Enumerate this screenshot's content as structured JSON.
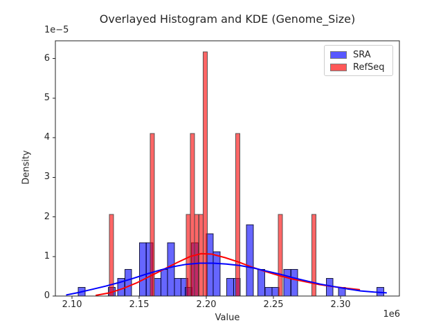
{
  "title": "Overlayed Histogram and KDE (Genome_Size)",
  "axes": {
    "xlabel": "Value",
    "ylabel": "Density",
    "y_offset_label": "1e−5",
    "x_offset_label": "1e6"
  },
  "legend": {
    "items": [
      {
        "label": "SRA",
        "color": "#0000ff"
      },
      {
        "label": "RefSeq",
        "color": "#ff0000"
      }
    ]
  },
  "chart_data": {
    "type": "histogram+kde",
    "title": "Overlayed Histogram and KDE (Genome_Size)",
    "xlabel": "Value",
    "ylabel": "Density",
    "x_unit_multiplier": "1e6",
    "y_unit_multiplier": "1e-5",
    "xlim": [
      2.0876,
      2.3438
    ],
    "ylim": [
      0,
      6.45
    ],
    "grid": false,
    "legend_position": "upper right",
    "x_ticks": [
      {
        "value": 2.1,
        "label": "2.10"
      },
      {
        "value": 2.15,
        "label": "2.15"
      },
      {
        "value": 2.2,
        "label": "2.20"
      },
      {
        "value": 2.25,
        "label": "2.25"
      },
      {
        "value": 2.3,
        "label": "2.30"
      }
    ],
    "y_ticks": [
      {
        "value": 0,
        "label": "0"
      },
      {
        "value": 1,
        "label": "1"
      },
      {
        "value": 2,
        "label": "2"
      },
      {
        "value": 3,
        "label": "3"
      },
      {
        "value": 4,
        "label": "4"
      },
      {
        "value": 5,
        "label": "5"
      },
      {
        "value": 6,
        "label": "6"
      }
    ],
    "series": [
      {
        "name": "SRA",
        "color": "#0000ff",
        "fill_opacity": 0.6,
        "edge_color": "rgba(0,0,25,0.85)",
        "bar_width": 0.005,
        "bars": [
          [
            2.1072,
            0.22
          ],
          [
            2.1296,
            0.22
          ],
          [
            2.1366,
            0.45
          ],
          [
            2.1418,
            0.67
          ],
          [
            2.1528,
            1.35
          ],
          [
            2.1577,
            1.35
          ],
          [
            2.1637,
            0.45
          ],
          [
            2.1686,
            0.67
          ],
          [
            2.1737,
            1.35
          ],
          [
            2.1787,
            0.45
          ],
          [
            2.1837,
            0.45
          ],
          [
            2.1868,
            0.22
          ],
          [
            2.1915,
            1.35
          ],
          [
            2.2026,
            1.57
          ],
          [
            2.2077,
            1.12
          ],
          [
            2.2178,
            0.45
          ],
          [
            2.2228,
            0.45
          ],
          [
            2.2325,
            1.8
          ],
          [
            2.241,
            0.67
          ],
          [
            2.2464,
            0.22
          ],
          [
            2.2515,
            0.22
          ],
          [
            2.2603,
            0.67
          ],
          [
            2.2655,
            0.67
          ],
          [
            2.2918,
            0.45
          ],
          [
            2.301,
            0.22
          ],
          [
            2.3296,
            0.22
          ]
        ],
        "kde": [
          [
            2.096,
            0.03
          ],
          [
            2.105,
            0.09
          ],
          [
            2.115,
            0.17
          ],
          [
            2.125,
            0.25
          ],
          [
            2.135,
            0.34
          ],
          [
            2.145,
            0.44
          ],
          [
            2.155,
            0.55
          ],
          [
            2.165,
            0.65
          ],
          [
            2.175,
            0.74
          ],
          [
            2.185,
            0.8
          ],
          [
            2.195,
            0.83
          ],
          [
            2.205,
            0.83
          ],
          [
            2.215,
            0.81
          ],
          [
            2.225,
            0.77
          ],
          [
            2.235,
            0.71
          ],
          [
            2.245,
            0.63
          ],
          [
            2.255,
            0.55
          ],
          [
            2.265,
            0.46
          ],
          [
            2.275,
            0.38
          ],
          [
            2.285,
            0.3
          ],
          [
            2.295,
            0.24
          ],
          [
            2.305,
            0.18
          ],
          [
            2.315,
            0.13
          ],
          [
            2.325,
            0.1
          ],
          [
            2.334,
            0.08
          ]
        ]
      },
      {
        "name": "RefSeq",
        "color": "#ff0000",
        "fill_opacity": 0.6,
        "edge_color": "rgba(70,70,70,0.9)",
        "bar_width": 0.0031,
        "bars": [
          [
            2.1294,
            2.06
          ],
          [
            2.1598,
            4.11
          ],
          [
            2.1865,
            2.06
          ],
          [
            2.1897,
            4.11
          ],
          [
            2.1928,
            2.06
          ],
          [
            2.196,
            2.06
          ],
          [
            2.1992,
            6.17
          ],
          [
            2.2235,
            4.11
          ],
          [
            2.2551,
            2.06
          ],
          [
            2.2801,
            2.06
          ]
        ],
        "kde": [
          [
            2.118,
            0.02
          ],
          [
            2.128,
            0.08
          ],
          [
            2.138,
            0.19
          ],
          [
            2.148,
            0.33
          ],
          [
            2.158,
            0.5
          ],
          [
            2.168,
            0.67
          ],
          [
            2.178,
            0.84
          ],
          [
            2.188,
            1.0
          ],
          [
            2.196,
            1.07
          ],
          [
            2.204,
            1.06
          ],
          [
            2.214,
            0.97
          ],
          [
            2.224,
            0.86
          ],
          [
            2.234,
            0.73
          ],
          [
            2.244,
            0.62
          ],
          [
            2.254,
            0.52
          ],
          [
            2.264,
            0.43
          ],
          [
            2.274,
            0.36
          ],
          [
            2.284,
            0.29
          ],
          [
            2.294,
            0.24
          ],
          [
            2.304,
            0.2
          ],
          [
            2.314,
            0.16
          ]
        ]
      }
    ]
  }
}
